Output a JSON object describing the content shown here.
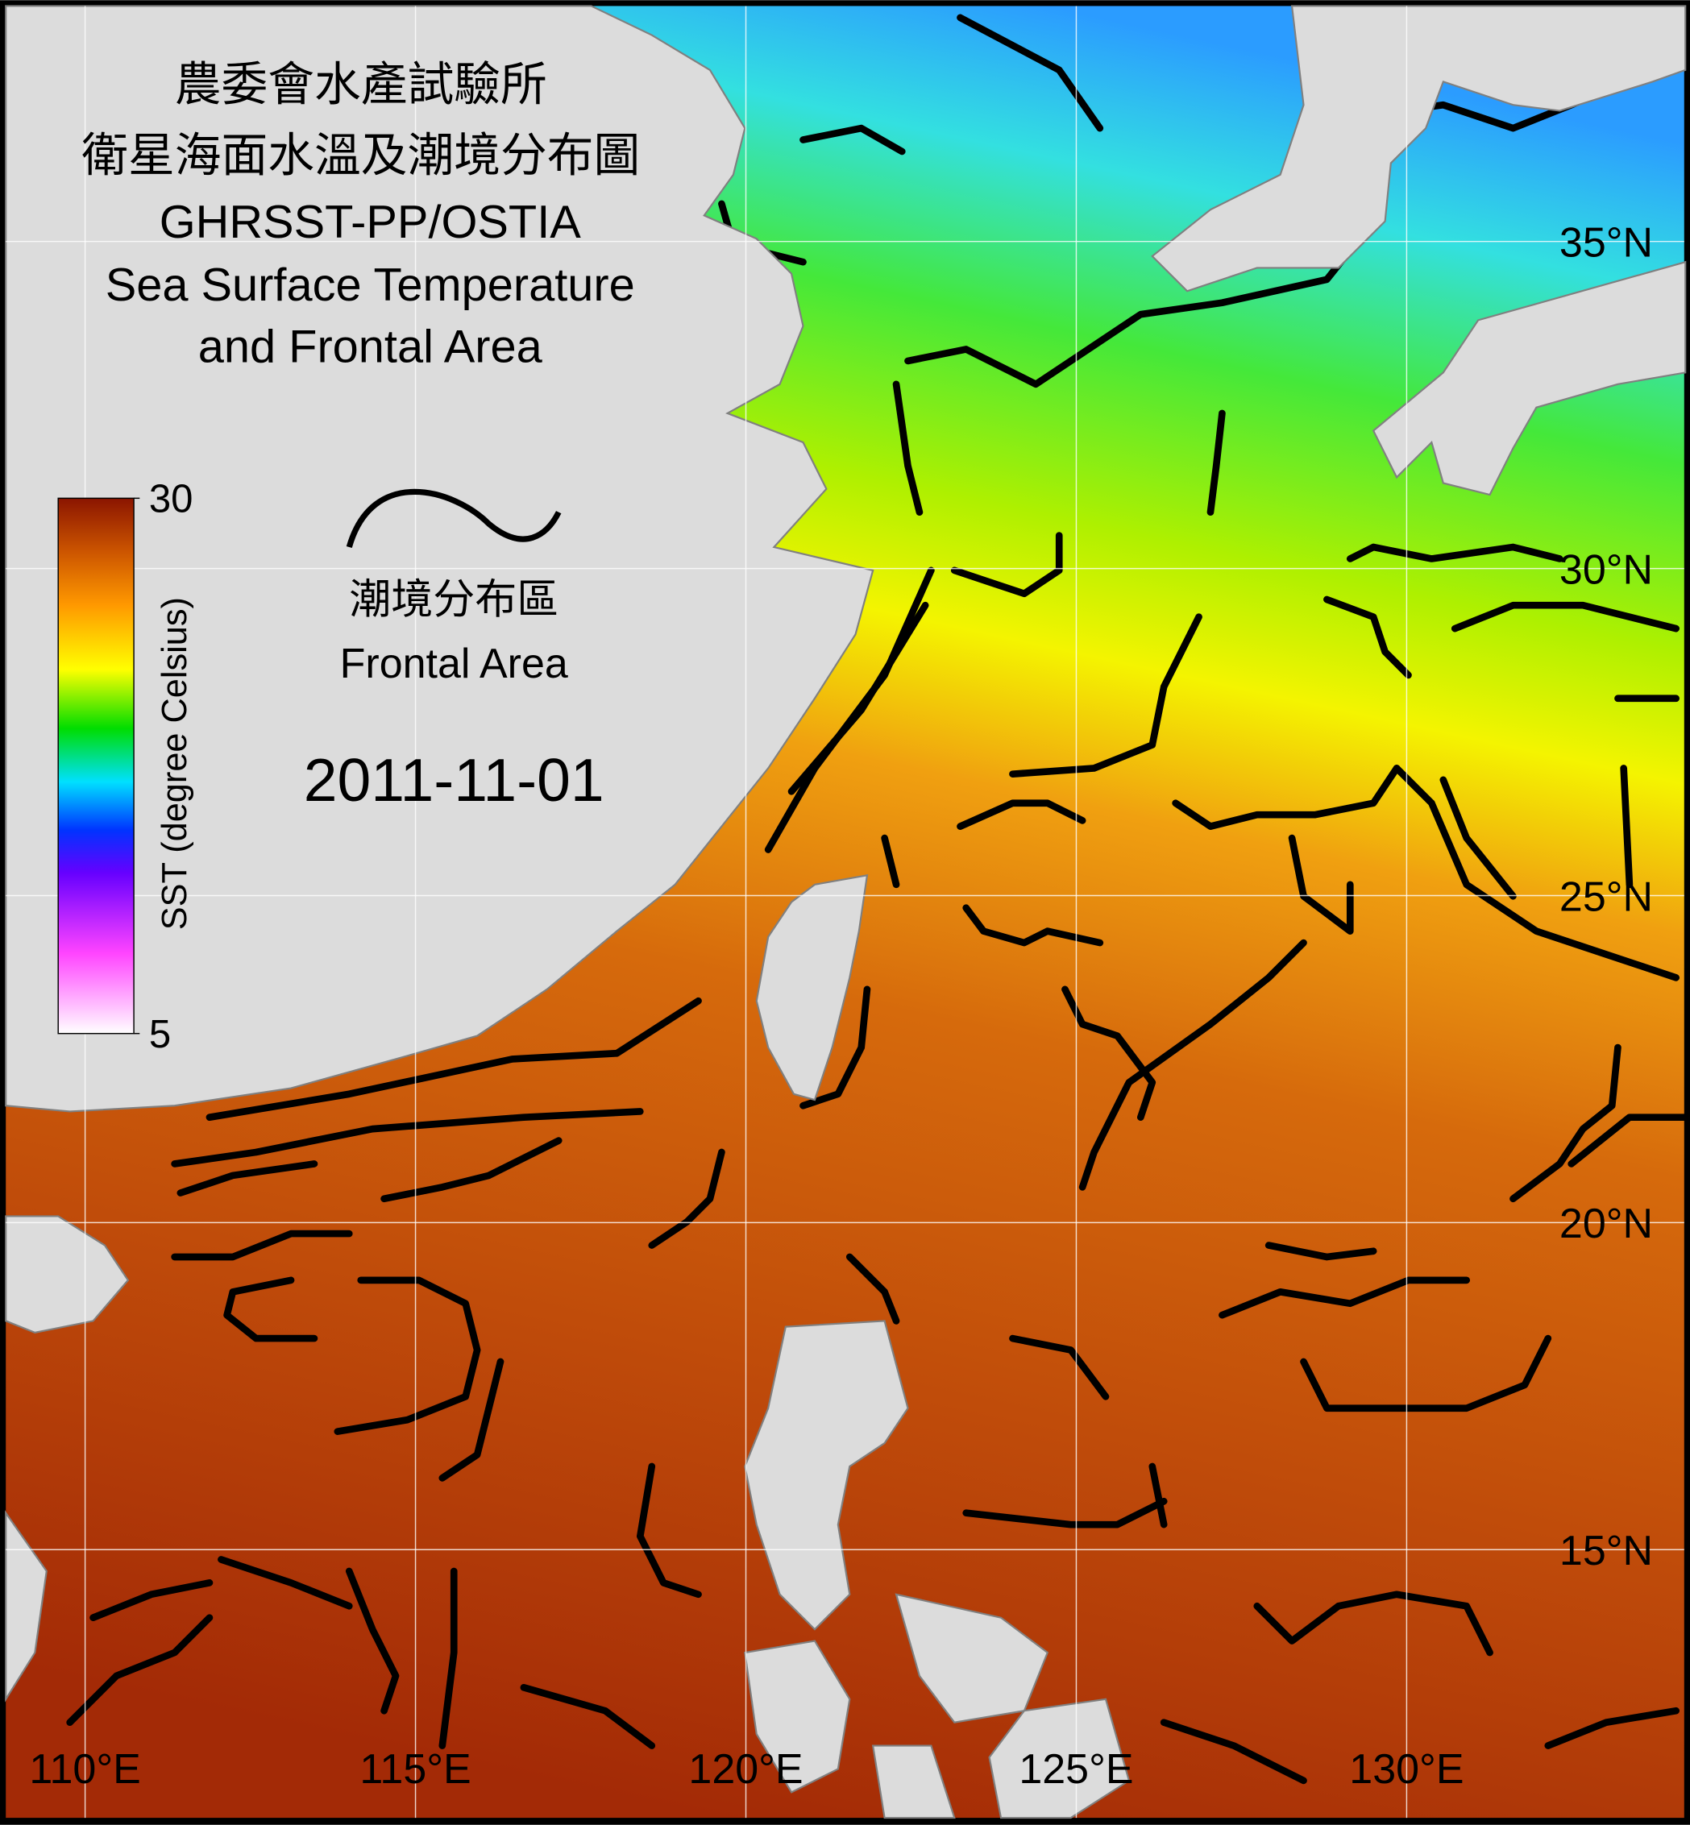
{
  "title": [
    "農委會水產試驗所",
    "衛星海面水溫及潮境分布圖",
    "GHRSST-PP/OSTIA",
    "Sea Surface Temperature",
    "and Frontal Area"
  ],
  "legend": {
    "label_zh": "潮境分布區",
    "label_en": "Frontal Area"
  },
  "date": "2011-11-01",
  "colorbar": {
    "label": "SST (degree Celsius)",
    "lim": [
      5,
      30
    ],
    "ticks": [
      5,
      30
    ]
  },
  "map": {
    "xlim": [
      108.8,
      134.2
    ],
    "ylim": [
      10.9,
      38.6
    ],
    "lon_ticks": [
      {
        "value": 110,
        "label": "110°E"
      },
      {
        "value": 115,
        "label": "115°E"
      },
      {
        "value": 120,
        "label": "120°E"
      },
      {
        "value": 125,
        "label": "125°E"
      },
      {
        "value": 130,
        "label": "130°E"
      }
    ],
    "lat_ticks": [
      {
        "value": 15,
        "label": "15°N"
      },
      {
        "value": 20,
        "label": "20°N"
      },
      {
        "value": 25,
        "label": "25°N"
      },
      {
        "value": 30,
        "label": "30°N"
      },
      {
        "value": 35,
        "label": "35°N"
      }
    ]
  }
}
